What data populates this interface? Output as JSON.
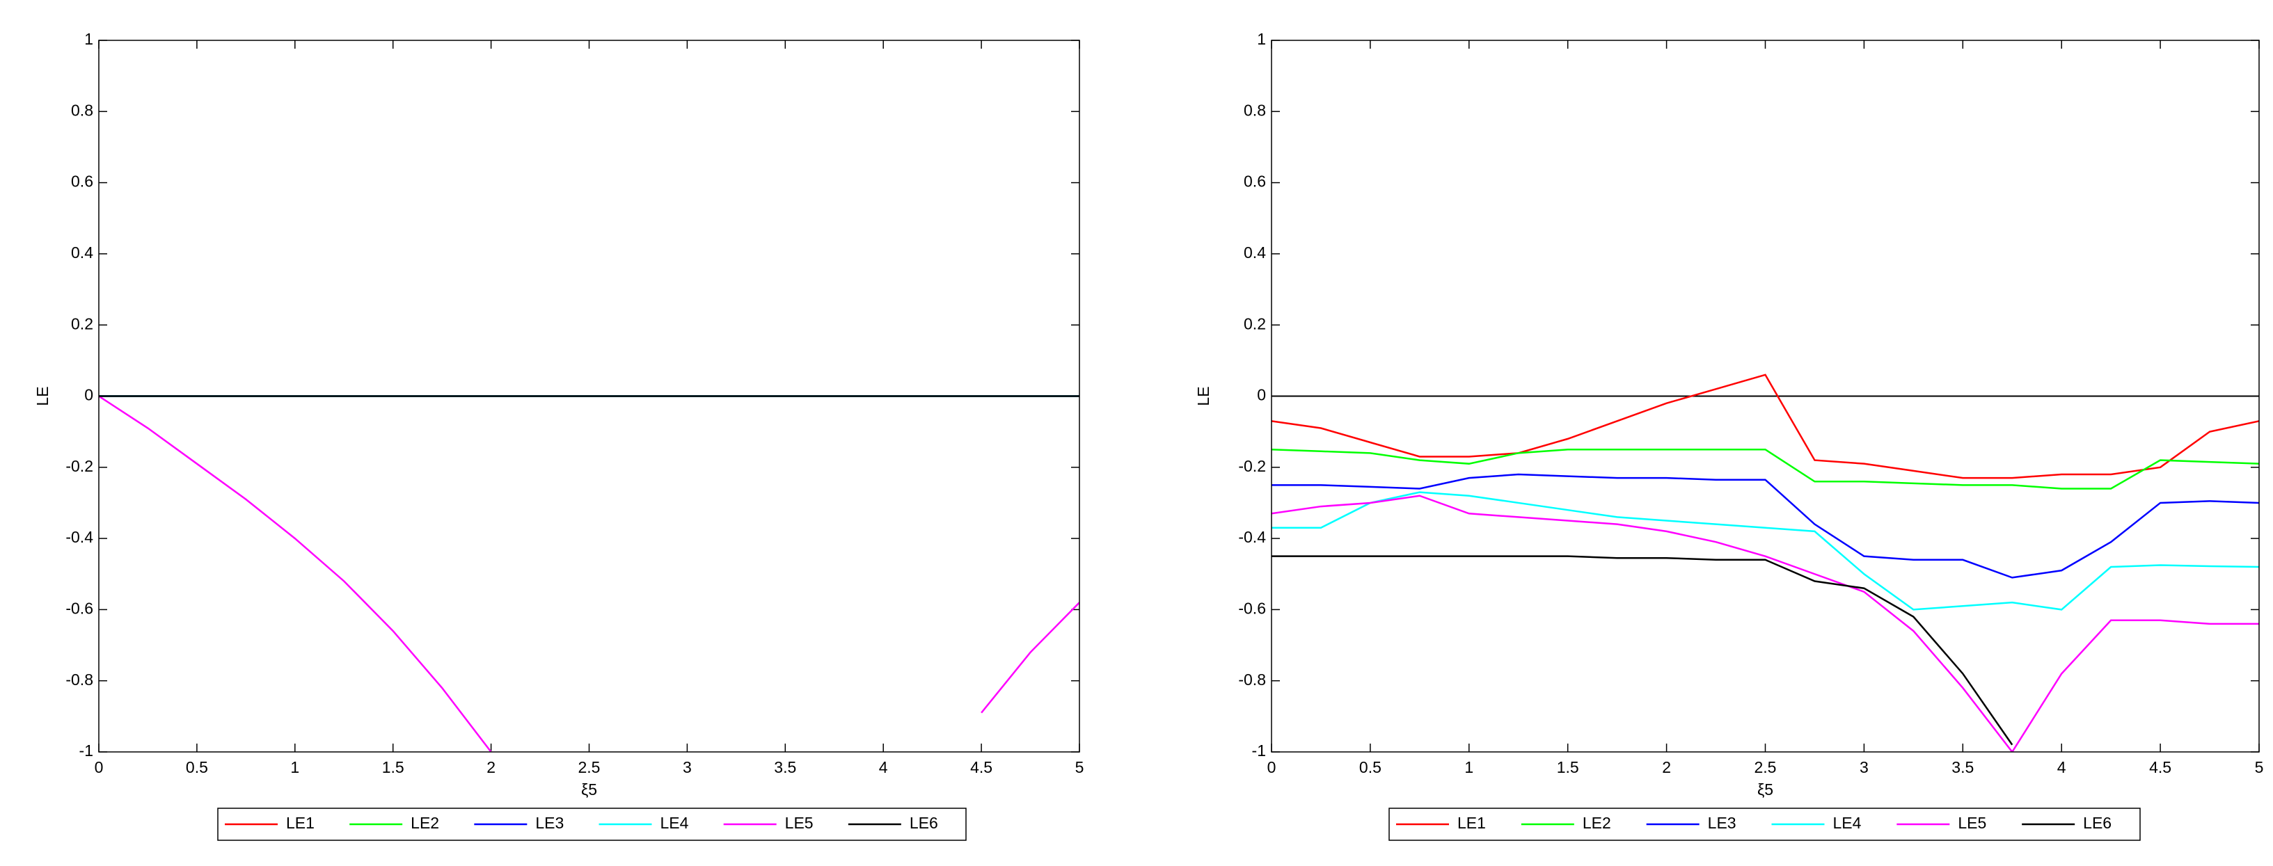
{
  "chart_data": [
    {
      "type": "line",
      "xlabel": "ξ5",
      "ylabel": "LE",
      "x": [
        0,
        0.25,
        0.5,
        0.75,
        1,
        1.25,
        1.5,
        1.75,
        2,
        2.25,
        2.5,
        2.75,
        3,
        3.25,
        3.5,
        3.75,
        4,
        4.25,
        4.5,
        4.75,
        5
      ],
      "xlim": [
        0,
        5
      ],
      "xticks": [
        0,
        0.5,
        1,
        1.5,
        2,
        2.5,
        3,
        3.5,
        4,
        4.5,
        5
      ],
      "ylim": [
        -1,
        1
      ],
      "yticks": [
        -1,
        -0.8,
        -0.6,
        -0.4,
        -0.2,
        0,
        0.2,
        0.4,
        0.6,
        0.8,
        1
      ],
      "grid": false,
      "legend": "bottom-outside",
      "series": [
        {
          "name": "LE1",
          "color": "#ff0000",
          "values": [
            0,
            0,
            0,
            0,
            0,
            0,
            0,
            0,
            0,
            0,
            0,
            0,
            0,
            0,
            0,
            0,
            0,
            0,
            0,
            0,
            0
          ]
        },
        {
          "name": "LE2",
          "color": "#00ff00",
          "values": [
            0,
            0,
            0,
            0,
            0,
            0,
            0,
            0,
            0,
            0,
            0,
            0,
            0,
            0,
            0,
            0,
            0,
            0,
            0,
            0,
            0
          ]
        },
        {
          "name": "LE3",
          "color": "#0000ff",
          "values": [
            0,
            0,
            0,
            0,
            0,
            0,
            0,
            0,
            0,
            0,
            0,
            0,
            0,
            0,
            0,
            0,
            0,
            0,
            0,
            0,
            0
          ]
        },
        {
          "name": "LE4",
          "color": "#00ffff",
          "values": [
            0,
            0,
            0,
            0,
            0,
            0,
            0,
            0,
            0,
            0,
            0,
            0,
            0,
            0,
            0,
            0,
            0,
            0,
            0,
            0,
            0
          ]
        },
        {
          "name": "LE5",
          "color": "#ff00ff",
          "values": [
            0,
            -0.09,
            -0.19,
            -0.29,
            -0.4,
            -0.52,
            -0.66,
            -0.82,
            -1,
            null,
            null,
            null,
            null,
            null,
            null,
            null,
            null,
            null,
            -0.89,
            -0.72,
            -0.58
          ]
        },
        {
          "name": "LE6",
          "color": "#000000",
          "values": [
            0,
            0,
            0,
            0,
            0,
            0,
            0,
            0,
            0,
            0,
            0,
            0,
            0,
            0,
            0,
            0,
            0,
            0,
            0,
            0,
            0
          ]
        }
      ]
    },
    {
      "type": "line",
      "xlabel": "ξ5",
      "ylabel": "LE",
      "x": [
        0,
        0.25,
        0.5,
        0.75,
        1,
        1.25,
        1.5,
        1.75,
        2,
        2.25,
        2.5,
        2.75,
        3,
        3.25,
        3.5,
        3.75,
        4,
        4.25,
        4.5,
        4.75,
        5
      ],
      "xlim": [
        0,
        5
      ],
      "xticks": [
        0,
        0.5,
        1,
        1.5,
        2,
        2.5,
        3,
        3.5,
        4,
        4.5,
        5
      ],
      "ylim": [
        -1,
        1
      ],
      "yticks": [
        -1,
        -0.8,
        -0.6,
        -0.4,
        -0.2,
        0,
        0.2,
        0.4,
        0.6,
        0.8,
        1
      ],
      "grid": false,
      "legend": "bottom-outside",
      "zero_line": true,
      "series": [
        {
          "name": "LE1",
          "color": "#ff0000",
          "values": [
            -0.07,
            -0.09,
            -0.13,
            -0.17,
            -0.17,
            -0.16,
            -0.12,
            -0.07,
            -0.02,
            0.02,
            0.06,
            -0.18,
            -0.19,
            -0.21,
            -0.23,
            -0.23,
            -0.22,
            -0.22,
            -0.2,
            -0.1,
            -0.07
          ]
        },
        {
          "name": "LE2",
          "color": "#00ff00",
          "values": [
            -0.15,
            -0.155,
            -0.16,
            -0.18,
            -0.19,
            -0.16,
            -0.15,
            -0.15,
            -0.15,
            -0.15,
            -0.15,
            -0.24,
            -0.24,
            -0.245,
            -0.25,
            -0.25,
            -0.26,
            -0.26,
            -0.18,
            -0.185,
            -0.19
          ]
        },
        {
          "name": "LE3",
          "color": "#0000ff",
          "values": [
            -0.25,
            -0.25,
            -0.255,
            -0.26,
            -0.23,
            -0.22,
            -0.225,
            -0.23,
            -0.23,
            -0.235,
            -0.235,
            -0.36,
            -0.45,
            -0.46,
            -0.46,
            -0.51,
            -0.49,
            -0.41,
            -0.3,
            -0.295,
            -0.3
          ]
        },
        {
          "name": "LE4",
          "color": "#00ffff",
          "values": [
            -0.37,
            -0.37,
            -0.3,
            -0.27,
            -0.28,
            -0.3,
            -0.32,
            -0.34,
            -0.35,
            -0.36,
            -0.37,
            -0.38,
            -0.5,
            -0.6,
            -0.59,
            -0.58,
            -0.6,
            -0.48,
            -0.475,
            -0.478,
            -0.48
          ]
        },
        {
          "name": "LE5",
          "color": "#ff00ff",
          "values": [
            -0.33,
            -0.31,
            -0.3,
            -0.28,
            -0.33,
            -0.34,
            -0.35,
            -0.36,
            -0.38,
            -0.41,
            -0.45,
            -0.5,
            -0.55,
            -0.66,
            -0.82,
            -1,
            -0.78,
            -0.63,
            -0.63,
            -0.64,
            -0.64
          ]
        },
        {
          "name": "LE6",
          "color": "#000000",
          "values": [
            -0.45,
            -0.45,
            -0.45,
            -0.45,
            -0.45,
            -0.45,
            -0.45,
            -0.455,
            -0.455,
            -0.46,
            -0.46,
            -0.52,
            -0.54,
            -0.62,
            -0.78,
            -0.98,
            null,
            null,
            null,
            null,
            null
          ]
        }
      ]
    }
  ]
}
